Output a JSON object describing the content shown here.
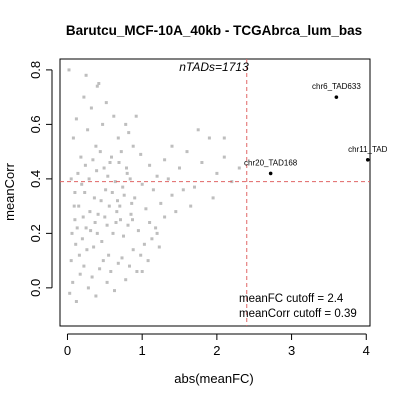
{
  "chart_data": {
    "type": "scatter",
    "title": "Barutcu_MCF-10A_40kb - TCGAbrca_lum_bas",
    "xlabel": "abs(meanFC)",
    "ylabel": "meanCorr",
    "xlim": [
      -0.1,
      4.05
    ],
    "ylim": [
      -0.14,
      0.84
    ],
    "x_ticks": [
      0,
      1,
      2,
      3,
      4
    ],
    "y_ticks": [
      0.0,
      0.2,
      0.4,
      0.6,
      0.8
    ],
    "x_tick_labels": [
      "0",
      "1",
      "2",
      "3",
      "4"
    ],
    "y_tick_labels": [
      "0.0",
      "0.2",
      "0.4",
      "0.6",
      "0.8"
    ],
    "grid": false,
    "n_tads_label": "nTADs=1713",
    "cutoffs": {
      "meanFC": 2.4,
      "meanCorr": 0.39,
      "line_color": "#e06666",
      "fc_text": "meanFC cutoff = 2.4",
      "corr_text": "meanCorr cutoff = 0.39"
    },
    "background_color": "#bebebe",
    "highlight_color": "#000000",
    "highlighted_points": [
      {
        "label": "chr6_TAD633",
        "x": 3.6,
        "y": 0.7
      },
      {
        "label": "chr11_TAD",
        "x": 4.02,
        "y": 0.47
      },
      {
        "label": "chr20_TAD168",
        "x": 2.72,
        "y": 0.42
      }
    ],
    "background_points": [
      [
        0.05,
        0.1
      ],
      [
        0.1,
        0.25
      ],
      [
        0.15,
        0.3
      ],
      [
        0.2,
        0.18
      ],
      [
        0.25,
        0.22
      ],
      [
        0.3,
        0.28
      ],
      [
        0.35,
        0.15
      ],
      [
        0.4,
        0.2
      ],
      [
        0.45,
        0.32
      ],
      [
        0.5,
        0.26
      ],
      [
        0.55,
        0.12
      ],
      [
        0.6,
        0.35
      ],
      [
        0.65,
        0.24
      ],
      [
        0.7,
        0.3
      ],
      [
        0.75,
        0.19
      ],
      [
        0.8,
        0.42
      ],
      [
        0.85,
        0.27
      ],
      [
        0.9,
        0.33
      ],
      [
        0.95,
        0.21
      ],
      [
        1.0,
        0.38
      ],
      [
        1.05,
        0.29
      ],
      [
        1.1,
        0.45
      ],
      [
        1.15,
        0.36
      ],
      [
        1.2,
        0.41
      ],
      [
        1.25,
        0.31
      ],
      [
        1.3,
        0.47
      ],
      [
        1.35,
        0.4
      ],
      [
        1.4,
        0.52
      ],
      [
        1.5,
        0.44
      ],
      [
        1.6,
        0.5
      ],
      [
        1.7,
        0.37
      ],
      [
        1.8,
        0.46
      ],
      [
        1.9,
        0.55
      ],
      [
        2.0,
        0.42
      ],
      [
        2.1,
        0.48
      ],
      [
        2.2,
        0.39
      ],
      [
        2.3,
        0.44
      ],
      [
        2.1,
        0.55
      ],
      [
        1.95,
        0.33
      ],
      [
        1.75,
        0.58
      ],
      [
        0.05,
        0.4
      ],
      [
        0.08,
        0.55
      ],
      [
        0.12,
        0.62
      ],
      [
        0.18,
        0.48
      ],
      [
        0.22,
        0.7
      ],
      [
        0.27,
        0.58
      ],
      [
        0.32,
        0.66
      ],
      [
        0.38,
        0.52
      ],
      [
        0.42,
        0.75
      ],
      [
        0.47,
        0.6
      ],
      [
        0.52,
        0.68
      ],
      [
        0.57,
        0.46
      ],
      [
        0.62,
        0.63
      ],
      [
        0.68,
        0.55
      ],
      [
        0.72,
        0.5
      ],
      [
        0.78,
        0.6
      ],
      [
        0.82,
        0.57
      ],
      [
        0.88,
        0.52
      ],
      [
        0.92,
        0.63
      ],
      [
        0.98,
        0.49
      ],
      [
        0.03,
        -0.02
      ],
      [
        0.07,
        0.02
      ],
      [
        0.12,
        -0.05
      ],
      [
        0.17,
        0.05
      ],
      [
        0.22,
        0.08
      ],
      [
        0.28,
        0.0
      ],
      [
        0.33,
        0.04
      ],
      [
        0.38,
        -0.03
      ],
      [
        0.43,
        0.07
      ],
      [
        0.48,
        0.1
      ],
      [
        0.53,
        0.02
      ],
      [
        0.58,
        0.06
      ],
      [
        0.63,
        -0.01
      ],
      [
        0.68,
        0.09
      ],
      [
        0.73,
        0.11
      ],
      [
        0.78,
        0.03
      ],
      [
        0.83,
        0.08
      ],
      [
        0.88,
        0.14
      ],
      [
        0.93,
        0.06
      ],
      [
        0.98,
        0.12
      ],
      [
        1.03,
        0.16
      ],
      [
        1.08,
        0.1
      ],
      [
        1.13,
        0.18
      ],
      [
        1.18,
        0.22
      ],
      [
        1.23,
        0.15
      ],
      [
        0.02,
        0.8
      ],
      [
        0.25,
        0.78
      ],
      [
        0.4,
        0.74
      ],
      [
        1.0,
        0.06
      ],
      [
        1.1,
        0.24
      ],
      [
        1.2,
        0.2
      ],
      [
        1.3,
        0.26
      ],
      [
        1.4,
        0.34
      ],
      [
        1.45,
        0.28
      ],
      [
        1.55,
        0.36
      ],
      [
        1.65,
        0.3
      ],
      [
        0.1,
        0.35
      ],
      [
        0.14,
        0.42
      ],
      [
        0.19,
        0.38
      ],
      [
        0.24,
        0.45
      ],
      [
        0.29,
        0.4
      ],
      [
        0.34,
        0.47
      ],
      [
        0.39,
        0.43
      ],
      [
        0.44,
        0.5
      ],
      [
        0.49,
        0.44
      ],
      [
        0.54,
        0.41
      ],
      [
        0.59,
        0.48
      ],
      [
        0.64,
        0.39
      ],
      [
        0.69,
        0.46
      ],
      [
        0.74,
        0.37
      ],
      [
        0.79,
        0.44
      ],
      [
        0.84,
        0.4
      ],
      [
        0.11,
        0.16
      ],
      [
        0.16,
        0.12
      ],
      [
        0.21,
        0.26
      ],
      [
        0.26,
        0.14
      ],
      [
        0.31,
        0.21
      ],
      [
        0.36,
        0.33
      ],
      [
        0.41,
        0.27
      ],
      [
        0.46,
        0.17
      ],
      [
        0.51,
        0.36
      ],
      [
        0.56,
        0.3
      ],
      [
        0.61,
        0.2
      ],
      [
        0.66,
        0.28
      ],
      [
        0.71,
        0.25
      ],
      [
        0.76,
        0.34
      ],
      [
        0.81,
        0.23
      ],
      [
        0.86,
        0.31
      ],
      [
        0.06,
        0.2
      ],
      [
        0.09,
        0.3
      ],
      [
        0.13,
        0.22
      ],
      [
        0.23,
        0.35
      ],
      [
        0.37,
        0.24
      ],
      [
        0.53,
        0.23
      ],
      [
        0.67,
        0.32
      ],
      [
        0.87,
        0.25
      ]
    ]
  }
}
